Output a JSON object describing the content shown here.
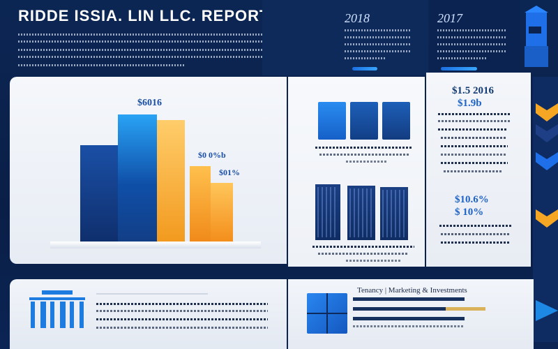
{
  "header": {
    "title": "RIDDE ISSIA. LIN LLC. REPORT",
    "year_left": "2018",
    "year_right": "2017"
  },
  "main_chart": {
    "label_top": "$6016",
    "label_mid": "$0 0%b",
    "label_side": "$01%"
  },
  "right_panel": {
    "heading_1a": "$1.5 2016",
    "heading_1b": "$1.9b",
    "heading_2a": "$10.6%",
    "heading_2b": "$ 10%"
  },
  "lower_mid": {
    "caption": "Tenancy | Marketing & Investments"
  },
  "colors": {
    "navy": "#0c2654",
    "accent_blue": "#1e88e5",
    "orange": "#f5a623"
  }
}
